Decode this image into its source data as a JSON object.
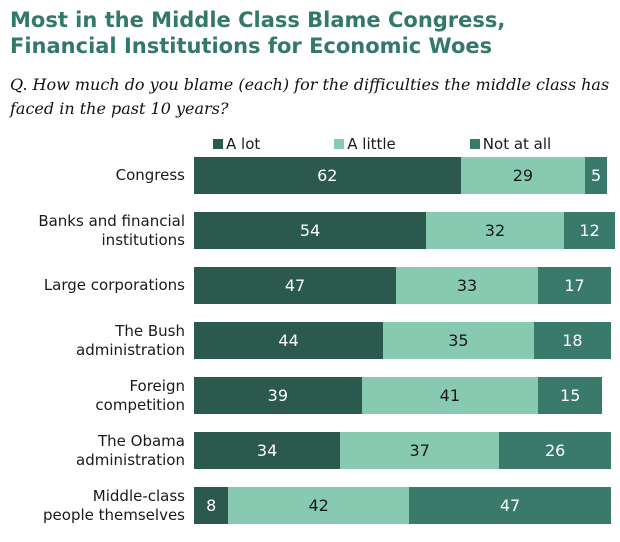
{
  "header": {
    "title": "Most in the Middle Class Blame Congress,\nFinancial Institutions for Economic Woes",
    "question": "Q. How much do you blame (each) for the difficulties the middle class has\nfaced in the past 10 years?"
  },
  "colors": {
    "title_text": "#33796B",
    "a_lot": "#2B594D",
    "a_little": "#87C9B1",
    "not_at_all": "#3A7A6B",
    "value_on_dark": "#FFFFFF",
    "value_on_light": "#1A1A1A"
  },
  "legend": [
    {
      "label": "A lot",
      "color": "#2B594D"
    },
    {
      "label": "A little",
      "color": "#87C9B1"
    },
    {
      "label": "Not at all",
      "color": "#3A7A6B"
    }
  ],
  "chart_data": {
    "type": "bar",
    "orientation": "horizontal",
    "stacked": true,
    "unit": "percent",
    "xlim": [
      0,
      100
    ],
    "grid": false,
    "legend_position": "top",
    "series_names": [
      "A lot",
      "A little",
      "Not at all"
    ],
    "categories": [
      "Congress",
      "Banks and financial institutions",
      "Large corporations",
      "The Bush administration",
      "Foreign competition",
      "The Obama administration",
      "Middle-class people themselves"
    ],
    "rows": [
      {
        "label": "Congress",
        "values": [
          62,
          29,
          5
        ]
      },
      {
        "label": "Banks and financial\ninstitutions",
        "values": [
          54,
          32,
          12
        ]
      },
      {
        "label": "Large corporations",
        "values": [
          47,
          33,
          17
        ]
      },
      {
        "label": "The Bush\nadministration",
        "values": [
          44,
          35,
          18
        ]
      },
      {
        "label": "Foreign\ncompetition",
        "values": [
          39,
          41,
          15
        ]
      },
      {
        "label": "The Obama\nadministration",
        "values": [
          34,
          37,
          26
        ]
      },
      {
        "label": "Middle-class\npeople themselves",
        "values": [
          8,
          42,
          47
        ]
      }
    ]
  }
}
